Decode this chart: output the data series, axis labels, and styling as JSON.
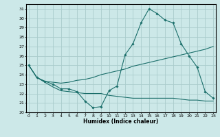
{
  "xlabel": "Humidex (Indice chaleur)",
  "background_color": "#cce8e8",
  "grid_color": "#aacccc",
  "line_color": "#1a6e6a",
  "xlim": [
    0,
    23
  ],
  "ylim": [
    20,
    31.5
  ],
  "xticks": [
    0,
    1,
    2,
    3,
    4,
    5,
    6,
    7,
    8,
    9,
    10,
    11,
    12,
    13,
    14,
    15,
    16,
    17,
    18,
    19,
    20,
    21,
    22,
    23
  ],
  "yticks": [
    20,
    21,
    22,
    23,
    24,
    25,
    26,
    27,
    28,
    29,
    30,
    31
  ],
  "line1_x": [
    0,
    1,
    2,
    3,
    4,
    5,
    6,
    7,
    8,
    9,
    10,
    11,
    12,
    13,
    14,
    15,
    16,
    17,
    18,
    19,
    20,
    21,
    22,
    23
  ],
  "line1_y": [
    25.0,
    23.7,
    23.3,
    23.2,
    23.1,
    23.2,
    23.4,
    23.5,
    23.7,
    24.0,
    24.2,
    24.4,
    24.6,
    24.9,
    25.1,
    25.3,
    25.5,
    25.7,
    25.9,
    26.1,
    26.3,
    26.5,
    26.7,
    27.0
  ],
  "line2_x": [
    0,
    1,
    2,
    3,
    4,
    5,
    6,
    7,
    8,
    9,
    10,
    11,
    12,
    13,
    14,
    15,
    16,
    17,
    18,
    19,
    20,
    21,
    22,
    23
  ],
  "line2_y": [
    25.0,
    23.7,
    23.2,
    22.7,
    22.3,
    22.2,
    22.1,
    22.0,
    22.0,
    22.0,
    21.8,
    21.7,
    21.6,
    21.5,
    21.5,
    21.5,
    21.5,
    21.5,
    21.5,
    21.4,
    21.3,
    21.3,
    21.2,
    21.2
  ],
  "line3_x": [
    0,
    1,
    2,
    3,
    4,
    5,
    6,
    7,
    8,
    9,
    10,
    11,
    12,
    13,
    14,
    15,
    16,
    17,
    18,
    19,
    20,
    21,
    22,
    23
  ],
  "line3_y": [
    25.0,
    23.7,
    23.3,
    23.0,
    22.5,
    22.5,
    22.2,
    21.2,
    20.5,
    20.6,
    22.3,
    22.8,
    26.1,
    27.3,
    29.5,
    31.0,
    30.5,
    29.8,
    29.5,
    27.3,
    26.0,
    24.8,
    22.2,
    21.5
  ]
}
